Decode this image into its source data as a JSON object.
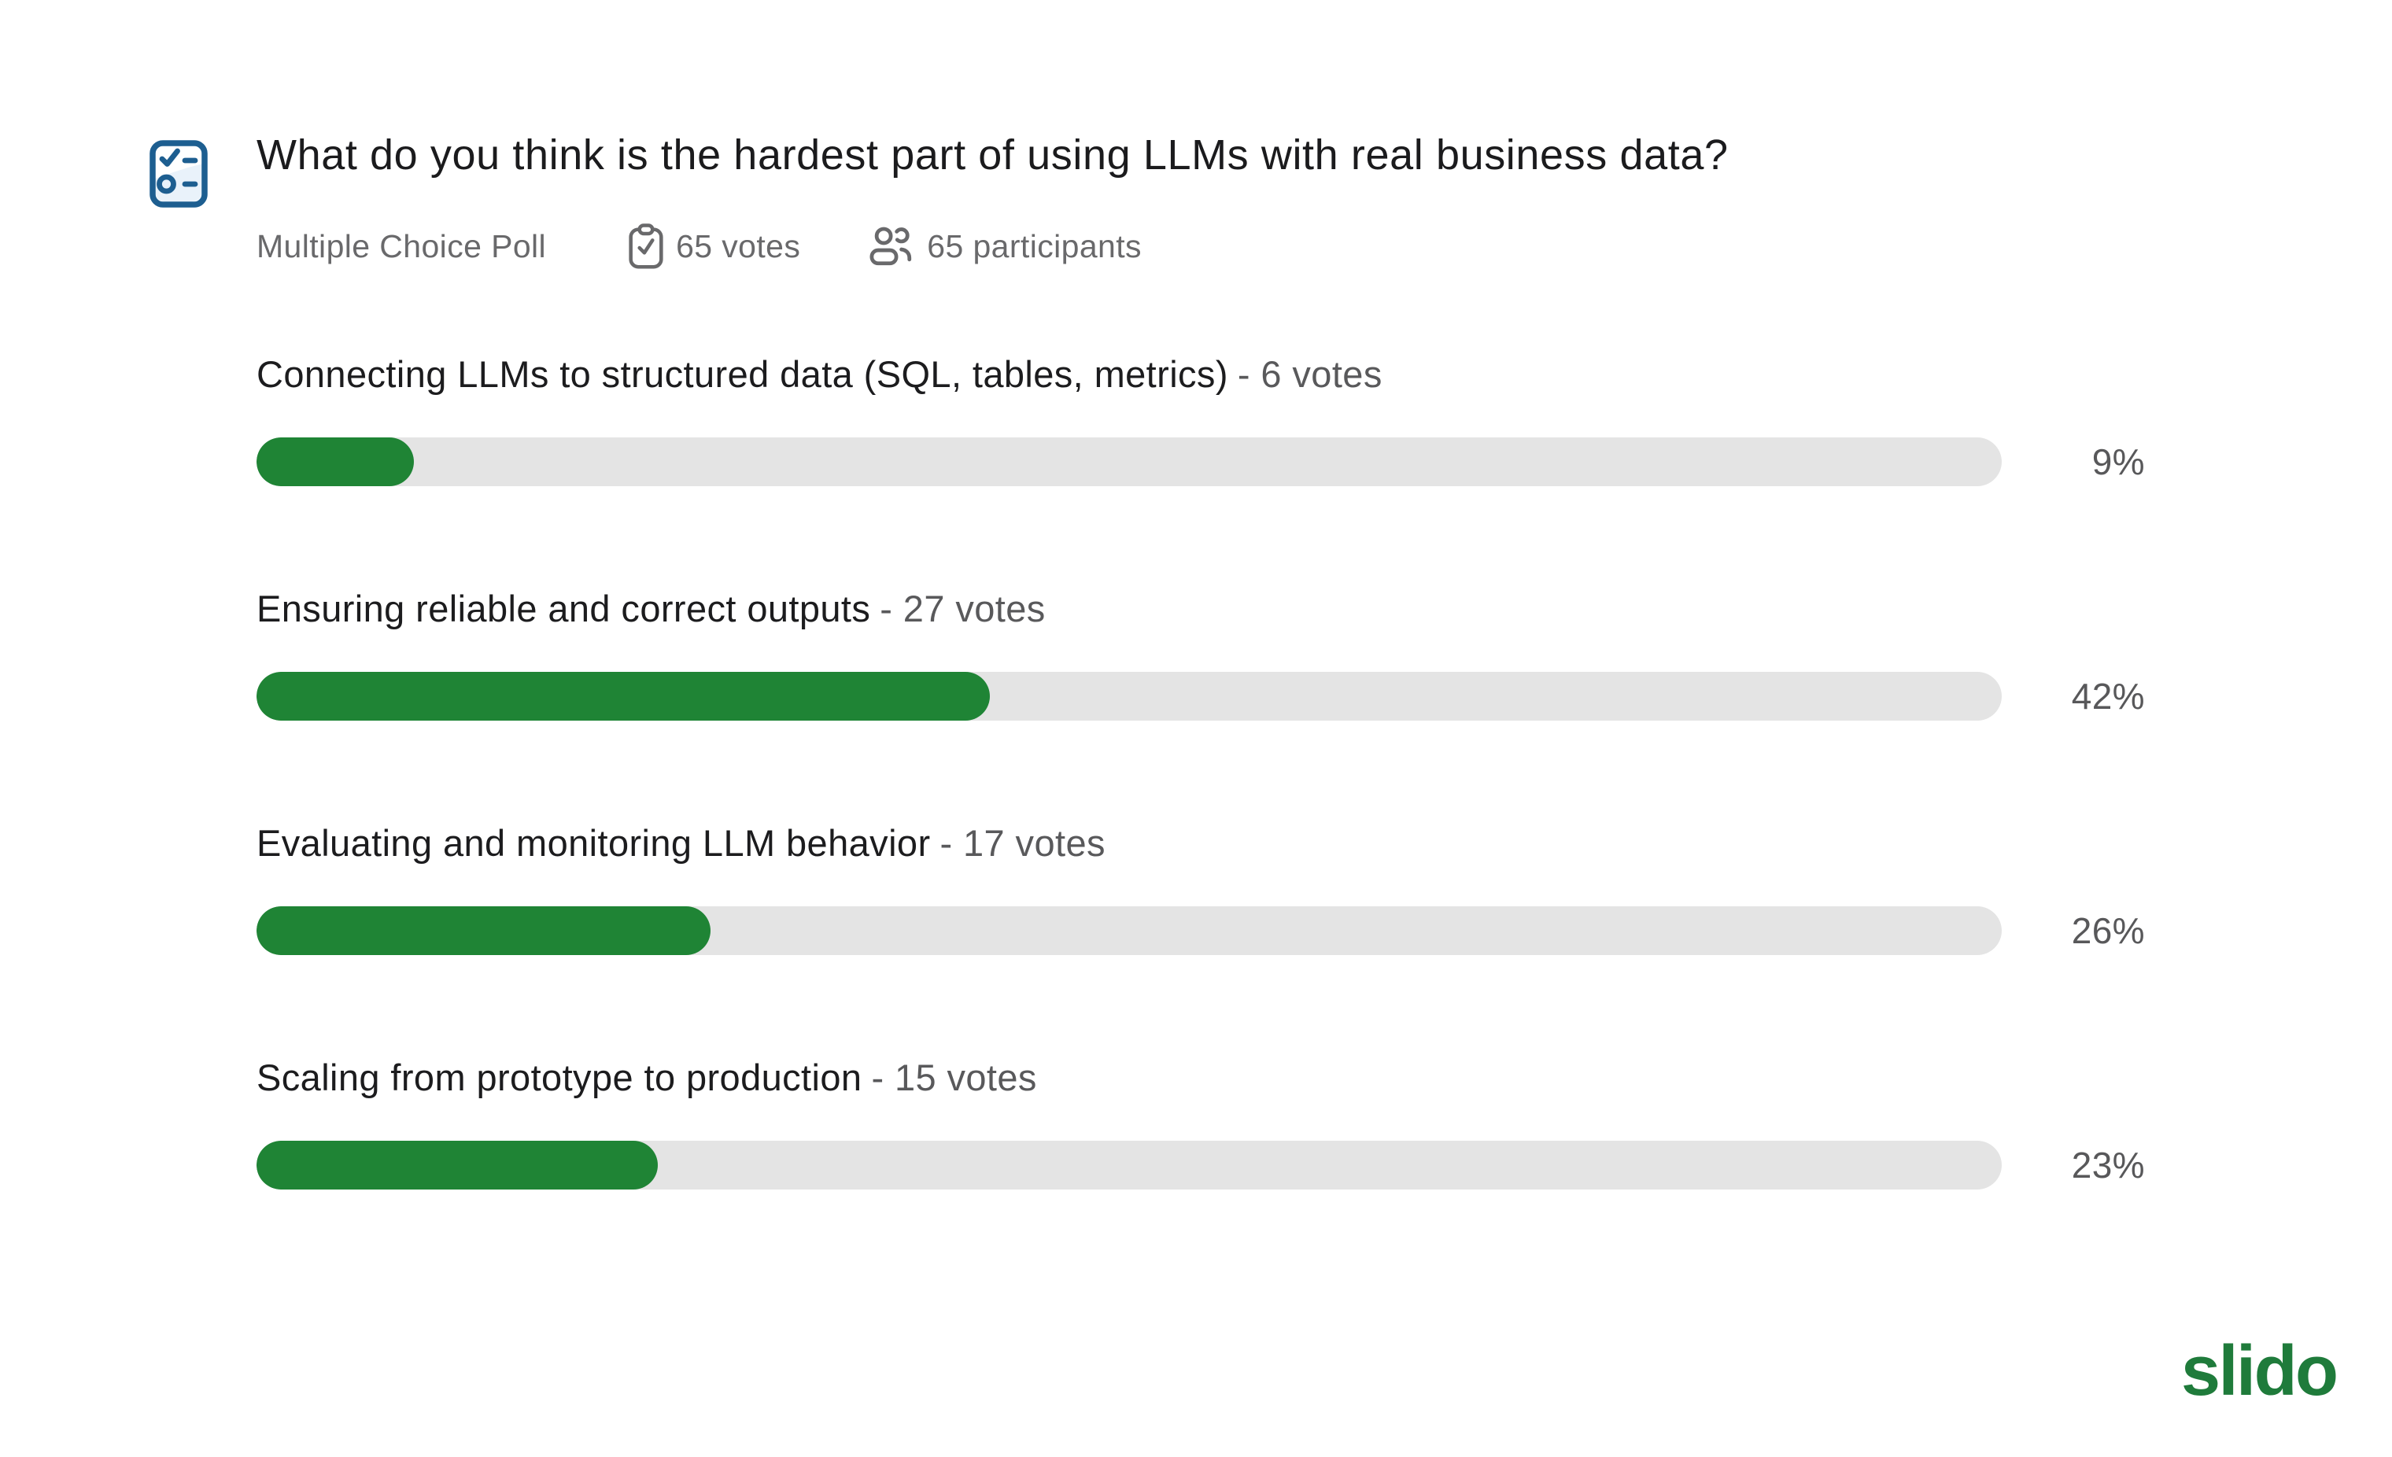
{
  "poll": {
    "title": "What do you think is the hardest part of using LLMs with real business data?",
    "type_label": "Multiple Choice Poll",
    "votes_label": "65 votes",
    "participants_label": "65 participants",
    "options": [
      {
        "label": "Connecting LLMs to structured data (SQL, tables, metrics)",
        "votes_label": "- 6 votes",
        "percent": 9,
        "percent_label": "9%"
      },
      {
        "label": "Ensuring reliable and correct outputs",
        "votes_label": "- 27 votes",
        "percent": 42,
        "percent_label": "42%"
      },
      {
        "label": "Evaluating and monitoring LLM behavior",
        "votes_label": "- 17 votes",
        "percent": 26,
        "percent_label": "26%"
      },
      {
        "label": "Scaling from prototype to production",
        "votes_label": "- 15 votes",
        "percent": 23,
        "percent_label": "23%"
      }
    ]
  },
  "branding": {
    "logo_text": "slido"
  },
  "icons": {
    "poll_type_icon": "checklist-poll-icon",
    "votes_icon": "clipboard-check-icon",
    "participants_icon": "people-icon"
  },
  "colors": {
    "bar_fill": "#1F8435",
    "bar_track": "#E4E4E4",
    "title_text": "#1B1B1D",
    "secondary_text": "#59595B",
    "meta_text": "#69696B",
    "icon_blue": "#1D5E90",
    "icon_blue_fill": "#E9F2FA",
    "logo_green": "#1F7B3B",
    "background": "#FFFFFF"
  },
  "chart_data": {
    "type": "bar",
    "orientation": "horizontal",
    "title": "What do you think is the hardest part of using LLMs with real business data?",
    "categories": [
      "Connecting LLMs to structured data (SQL, tables, metrics)",
      "Ensuring reliable and correct outputs",
      "Evaluating and monitoring LLM behavior",
      "Scaling from prototype to production"
    ],
    "series": [
      {
        "name": "votes",
        "values": [
          6,
          27,
          17,
          15
        ]
      },
      {
        "name": "percent",
        "values": [
          9,
          42,
          26,
          23
        ]
      }
    ],
    "total_votes": 65,
    "participants": 65,
    "xlim": [
      0,
      100
    ],
    "bar_color": "#1F8435",
    "track_color": "#E4E4E4"
  }
}
